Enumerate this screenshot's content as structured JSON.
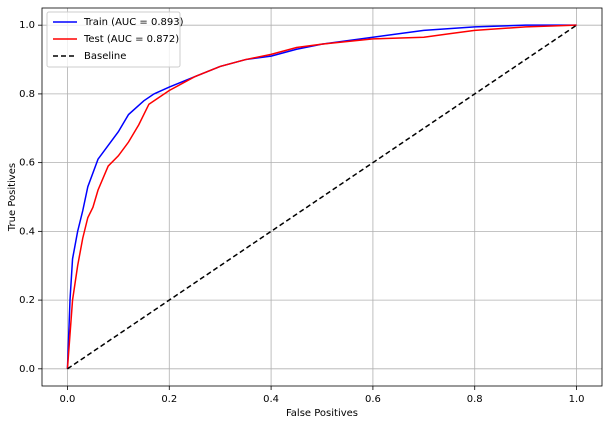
{
  "chart_data": {
    "type": "line",
    "xlabel": "False Positives",
    "ylabel": "True Positives",
    "xlim": [
      -0.05,
      1.05
    ],
    "ylim": [
      -0.05,
      1.05
    ],
    "xticks": [
      {
        "value": 0,
        "label": "0.0"
      },
      0.2,
      0.4,
      0.6,
      0.8,
      {
        "value": 1,
        "label": "1.0"
      }
    ],
    "yticks": [
      {
        "value": 0,
        "label": "0.0"
      },
      0.2,
      0.4,
      0.6,
      0.8,
      {
        "value": 1,
        "label": "1.0"
      }
    ],
    "grid": true,
    "legend": "upper left",
    "series": [
      {
        "name": "Train (AUC = 0.893)",
        "color": "#0000ff",
        "linestyle": "solid",
        "x": [
          0,
          0.005,
          0.01,
          0.02,
          0.03,
          0.04,
          0.05,
          0.06,
          0.08,
          0.1,
          0.12,
          0.15,
          0.17,
          0.2,
          0.25,
          0.3,
          0.35,
          0.4,
          0.45,
          0.5,
          0.6,
          0.7,
          0.8,
          0.9,
          1
        ],
        "values": [
          0,
          0.2,
          0.32,
          0.4,
          0.46,
          0.53,
          0.57,
          0.61,
          0.65,
          0.69,
          0.74,
          0.78,
          0.8,
          0.82,
          0.85,
          0.88,
          0.9,
          0.91,
          0.93,
          0.945,
          0.965,
          0.985,
          0.995,
          1,
          1
        ]
      },
      {
        "name": "Test (AUC = 0.872)",
        "color": "#ff0000",
        "linestyle": "solid",
        "x": [
          0,
          0.005,
          0.01,
          0.02,
          0.03,
          0.04,
          0.05,
          0.06,
          0.08,
          0.1,
          0.12,
          0.14,
          0.16,
          0.18,
          0.2,
          0.25,
          0.3,
          0.35,
          0.4,
          0.45,
          0.5,
          0.6,
          0.7,
          0.75,
          0.8,
          0.9,
          1
        ],
        "values": [
          0,
          0.1,
          0.2,
          0.3,
          0.38,
          0.44,
          0.47,
          0.52,
          0.59,
          0.62,
          0.66,
          0.71,
          0.77,
          0.79,
          0.81,
          0.85,
          0.88,
          0.9,
          0.915,
          0.935,
          0.945,
          0.96,
          0.965,
          0.975,
          0.985,
          0.995,
          1
        ]
      },
      {
        "name": "Baseline",
        "color": "#000000",
        "linestyle": "dashed",
        "x": [
          0,
          1
        ],
        "values": [
          0,
          1
        ]
      }
    ]
  }
}
